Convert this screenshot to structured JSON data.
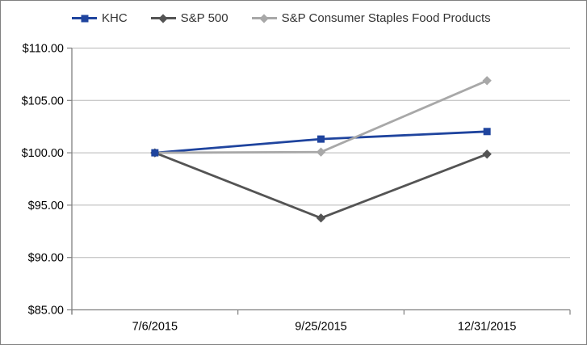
{
  "chart_data": {
    "type": "line",
    "categories": [
      "7/6/2015",
      "9/25/2015",
      "12/31/2015"
    ],
    "series": [
      {
        "name": "KHC",
        "values": [
          100.0,
          101.31,
          102.03
        ],
        "color": "#1F449E",
        "marker": "square"
      },
      {
        "name": "S&P 500",
        "values": [
          100.0,
          93.77,
          99.87
        ],
        "color": "#545454",
        "marker": "diamond"
      },
      {
        "name": "S&P Consumer Staples Food Products",
        "values": [
          100.0,
          100.07,
          106.89
        ],
        "color": "#A8A8A8",
        "marker": "diamond"
      }
    ],
    "title": "",
    "xlabel": "",
    "ylabel": "",
    "ylim": [
      85,
      110
    ],
    "y_tick_step": 5,
    "y_tick_labels": [
      "$85.00",
      "$90.00",
      "$95.00",
      "$100.00",
      "$105.00",
      "$110.00"
    ],
    "grid": true,
    "legend_position": "top",
    "colors": {
      "grid_color": "#B8B8B8",
      "axis_color": "#808080",
      "text_color": "#000000",
      "background": "#FFFFFF",
      "border_color": "#808080"
    }
  }
}
